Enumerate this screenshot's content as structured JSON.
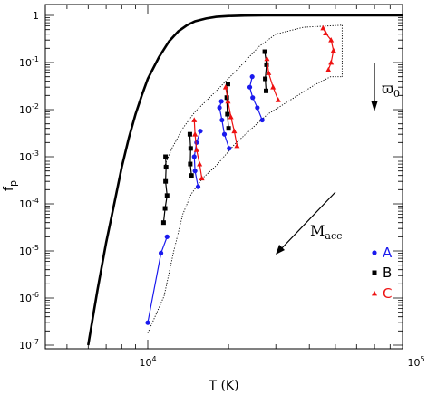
{
  "chart_data": {
    "type": "scatter",
    "title": "",
    "xlabel": "T (K)",
    "ylabel": "f",
    "ylabel_sub": "p",
    "x_scale": "log",
    "y_scale": "log",
    "xlim": [
      5000,
      100000
    ],
    "ylim": [
      1e-07,
      2
    ],
    "x_ticks": [
      {
        "value": 10000,
        "base": "10",
        "exp": "4"
      },
      {
        "value": 100000,
        "base": "10",
        "exp": "5"
      }
    ],
    "y_ticks": [
      {
        "value": 1,
        "base": "1",
        "exp": ""
      },
      {
        "value": 0.1,
        "base": "10",
        "exp": "-1"
      },
      {
        "value": 0.01,
        "base": "10",
        "exp": "-2"
      },
      {
        "value": 0.001,
        "base": "10",
        "exp": "-3"
      },
      {
        "value": 0.0001,
        "base": "10",
        "exp": "-4"
      },
      {
        "value": 1e-05,
        "base": "10",
        "exp": "-5"
      },
      {
        "value": 1e-06,
        "base": "10",
        "exp": "-6"
      },
      {
        "value": 1e-07,
        "base": "10",
        "exp": "-7"
      }
    ],
    "grid": false,
    "legend": {
      "position": "right",
      "entries": [
        "A",
        "B",
        "C"
      ]
    },
    "curve": [
      [
        6000,
        1e-07
      ],
      [
        6500,
        1.5e-06
      ],
      [
        7000,
        1.5e-05
      ],
      [
        7500,
        0.0001
      ],
      [
        8000,
        0.0006
      ],
      [
        8500,
        0.0025
      ],
      [
        9000,
        0.008
      ],
      [
        9500,
        0.02
      ],
      [
        10000,
        0.045
      ],
      [
        11000,
        0.13
      ],
      [
        12000,
        0.28
      ],
      [
        13000,
        0.46
      ],
      [
        14000,
        0.62
      ],
      [
        15000,
        0.75
      ],
      [
        16500,
        0.86
      ],
      [
        18000,
        0.93
      ],
      [
        20000,
        0.97
      ],
      [
        23000,
        0.99
      ],
      [
        27000,
        1.0
      ],
      [
        100000,
        1.0
      ]
    ],
    "envelope_upper": [
      [
        11500,
        0.0006
      ],
      [
        12300,
        0.0015
      ],
      [
        13500,
        0.004
      ],
      [
        15000,
        0.009
      ],
      [
        18000,
        0.025
      ],
      [
        22000,
        0.08
      ],
      [
        26000,
        0.22
      ],
      [
        30000,
        0.4
      ],
      [
        38000,
        0.56
      ],
      [
        53000,
        0.62
      ]
    ],
    "envelope_lower": [
      [
        10000,
        1.8e-07
      ],
      [
        11500,
        1.1e-06
      ],
      [
        12500,
        1e-05
      ],
      [
        13500,
        6e-05
      ],
      [
        14500,
        0.00016
      ],
      [
        16000,
        0.00035
      ],
      [
        18000,
        0.00065
      ],
      [
        21000,
        0.0018
      ],
      [
        25000,
        0.0045
      ],
      [
        28000,
        0.008
      ],
      [
        34000,
        0.016
      ],
      [
        42000,
        0.034
      ],
      [
        48000,
        0.05
      ],
      [
        53000,
        0.05
      ]
    ],
    "series": [
      {
        "name": "A",
        "color": "#1a1aee",
        "marker": "circle",
        "points": [
          [
            10000,
            3e-07
          ],
          [
            11200,
            9e-06
          ],
          [
            11800,
            2e-05
          ],
          [
            15700,
            0.0035
          ],
          [
            15200,
            0.002
          ],
          [
            14900,
            0.001
          ],
          [
            15000,
            0.0005
          ],
          [
            15400,
            0.00023
          ],
          [
            18800,
            0.015
          ],
          [
            18500,
            0.011
          ],
          [
            18900,
            0.006
          ],
          [
            19300,
            0.003
          ],
          [
            20100,
            0.0015
          ],
          [
            24500,
            0.05
          ],
          [
            24000,
            0.03
          ],
          [
            24600,
            0.018
          ],
          [
            25600,
            0.011
          ],
          [
            26700,
            0.006
          ]
        ],
        "segments": [
          [
            0,
            3
          ],
          [
            3,
            8
          ],
          [
            8,
            13
          ],
          [
            13,
            18
          ]
        ]
      },
      {
        "name": "B",
        "color": "#000000",
        "marker": "square",
        "points": [
          [
            11650,
            0.001
          ],
          [
            11700,
            0.0006
          ],
          [
            11650,
            0.0003
          ],
          [
            11800,
            0.00015
          ],
          [
            11600,
            8e-05
          ],
          [
            11450,
            4e-05
          ],
          [
            14350,
            0.003
          ],
          [
            14450,
            0.0015
          ],
          [
            14400,
            0.0007
          ],
          [
            14550,
            0.0004
          ],
          [
            19900,
            0.035
          ],
          [
            19700,
            0.018
          ],
          [
            19800,
            0.008
          ],
          [
            20000,
            0.004
          ],
          [
            27300,
            0.17
          ],
          [
            27700,
            0.09
          ],
          [
            27400,
            0.045
          ],
          [
            27600,
            0.025
          ]
        ],
        "segments": [
          [
            0,
            6
          ],
          [
            6,
            10
          ],
          [
            10,
            14
          ],
          [
            14,
            18
          ]
        ]
      },
      {
        "name": "C",
        "color": "#ee1111",
        "marker": "triangle",
        "points": [
          [
            14900,
            0.006
          ],
          [
            15000,
            0.003
          ],
          [
            15200,
            0.0014
          ],
          [
            15600,
            0.0007
          ],
          [
            15900,
            0.00035
          ],
          [
            19500,
            0.03
          ],
          [
            19900,
            0.015
          ],
          [
            20400,
            0.007
          ],
          [
            21000,
            0.0035
          ],
          [
            21500,
            0.0017
          ],
          [
            27800,
            0.12
          ],
          [
            28200,
            0.06
          ],
          [
            29300,
            0.03
          ],
          [
            30600,
            0.016
          ],
          [
            45000,
            0.54
          ],
          [
            46000,
            0.42
          ],
          [
            48200,
            0.3
          ],
          [
            49200,
            0.18
          ],
          [
            48200,
            0.1
          ],
          [
            47100,
            0.07
          ]
        ],
        "segments": [
          [
            0,
            5
          ],
          [
            5,
            10
          ],
          [
            10,
            14
          ],
          [
            14,
            20
          ]
        ]
      }
    ],
    "annotations": [
      {
        "text": "ϖ",
        "sub": "0",
        "arrow": "down"
      },
      {
        "text": "M",
        "sub": "acc",
        "arrow": "down-left"
      }
    ]
  }
}
